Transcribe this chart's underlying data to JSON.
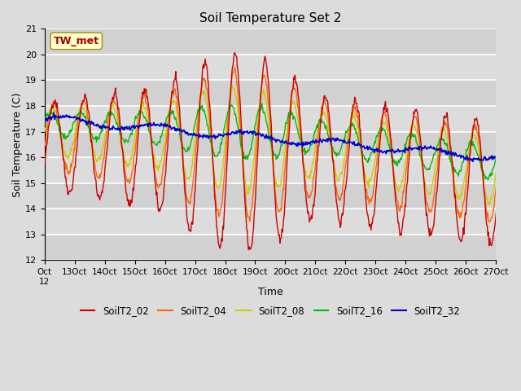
{
  "title": "Soil Temperature Set 2",
  "xlabel": "Time",
  "ylabel": "Soil Temperature (C)",
  "ylim": [
    12.0,
    21.0
  ],
  "yticks": [
    12.0,
    13.0,
    14.0,
    15.0,
    16.0,
    17.0,
    18.0,
    19.0,
    20.0,
    21.0
  ],
  "xtick_labels": [
    "Oct 12",
    "Oct 13",
    "Oct 14",
    "Oct 15",
    "Oct 16",
    "Oct 17",
    "Oct 18",
    "Oct 19",
    "Oct 20",
    "Oct 21",
    "Oct 22",
    "Oct 23",
    "Oct 24",
    "Oct 25",
    "Oct 26",
    "Oct 27"
  ],
  "series_colors": {
    "SoilT2_02": "#cc0000",
    "SoilT2_04": "#ff6600",
    "SoilT2_08": "#cccc00",
    "SoilT2_16": "#00bb00",
    "SoilT2_32": "#0000cc"
  },
  "bg_color": "#dcdcdc",
  "plot_bg_color": "#dcdcdc",
  "stripe_color": "#c8c8c8",
  "annotation_text": "TW_met",
  "annotation_bg": "#ffffcc",
  "annotation_border": "#cc0000",
  "figsize": [
    6.4,
    4.8
  ],
  "dpi": 100
}
